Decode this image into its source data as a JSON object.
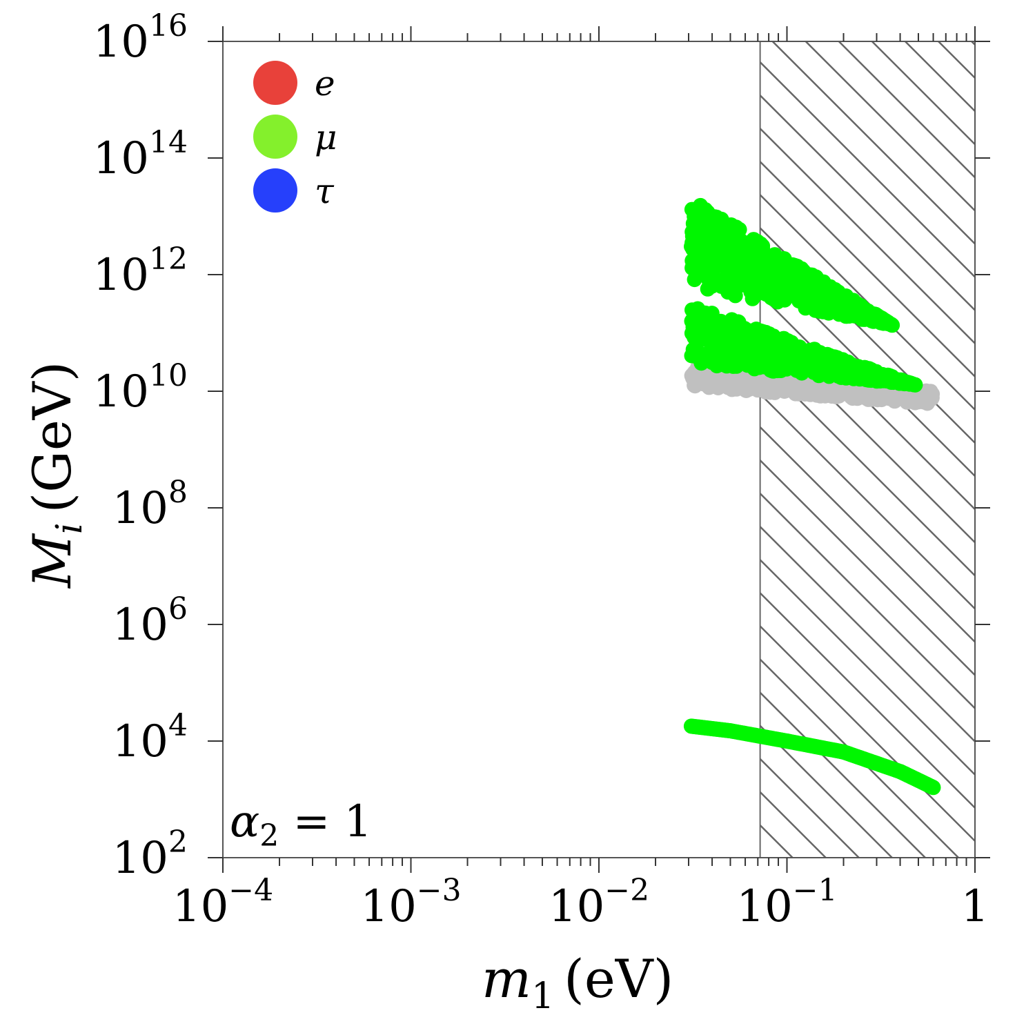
{
  "chart_data": {
    "type": "scatter",
    "title": "",
    "x_scale": "log",
    "y_scale": "log",
    "xlim": [
      0.0001,
      1
    ],
    "ylim": [
      100,
      1e+16
    ],
    "grid": false,
    "legend_position": "top-left",
    "xlabel": {
      "var": "m",
      "sub": "1",
      "unit": "(eV)"
    },
    "ylabel": {
      "var": "M",
      "sub": "i",
      "unit": "(GeV)"
    },
    "x_ticks": [
      {
        "value": 0.0001,
        "base": "10",
        "exp": "−4"
      },
      {
        "value": 0.001,
        "base": "10",
        "exp": "−3"
      },
      {
        "value": 0.01,
        "base": "10",
        "exp": "−2"
      },
      {
        "value": 0.1,
        "base": "10",
        "exp": "−1"
      },
      {
        "value": 1,
        "base": "1",
        "exp": ""
      }
    ],
    "y_ticks": [
      {
        "value": 100,
        "base": "10",
        "exp": "2"
      },
      {
        "value": 10000,
        "base": "10",
        "exp": "4"
      },
      {
        "value": 1000000,
        "base": "10",
        "exp": "6"
      },
      {
        "value": 100000000,
        "base": "10",
        "exp": "8"
      },
      {
        "value": 10000000000,
        "base": "10",
        "exp": "10"
      },
      {
        "value": 1000000000000,
        "base": "10",
        "exp": "12"
      },
      {
        "value": 100000000000000,
        "base": "10",
        "exp": "14"
      },
      {
        "value": 10000000000000000,
        "base": "10",
        "exp": "16"
      }
    ],
    "annotation": {
      "var": "α",
      "sub": "2",
      "rest": " = 1"
    },
    "excluded_region": {
      "x_from": 0.072,
      "x_to": 1,
      "style": "hatched",
      "color": "#666666"
    },
    "legend": [
      {
        "label": "e",
        "color": "#e8413a"
      },
      {
        "label": "μ",
        "color": "#84f02c"
      },
      {
        "label": "τ",
        "color": "#2640fb"
      }
    ],
    "series": [
      {
        "name": "μ",
        "color": "#00f600",
        "regions": [
          {
            "x_range": [
              0.031,
              0.6
            ],
            "y_lower": [
              30000000000.0,
              12000000000.0
            ],
            "y_upper": [
              300000000000.0,
              10000000000.0
            ]
          },
          {
            "x_range": [
              0.031,
              0.6
            ],
            "y_lower": [
              600000000000.0,
              100000000000.0
            ],
            "y_upper": [
              20000000000000.0,
              50000000000.0
            ]
          }
        ],
        "line": {
          "x": [
            0.031,
            0.05,
            0.1,
            0.2,
            0.4,
            0.6
          ],
          "y": [
            18000,
            15000,
            10000,
            6500,
            3000,
            1600
          ]
        }
      },
      {
        "name": "",
        "color": "#c0c0c0",
        "regions": [
          {
            "x_range": [
              0.031,
              0.6
            ],
            "y_lower": [
              12000000000.0,
              6000000000.0
            ],
            "y_upper": [
              30000000000.0,
              10000000000.0
            ]
          }
        ]
      }
    ]
  }
}
